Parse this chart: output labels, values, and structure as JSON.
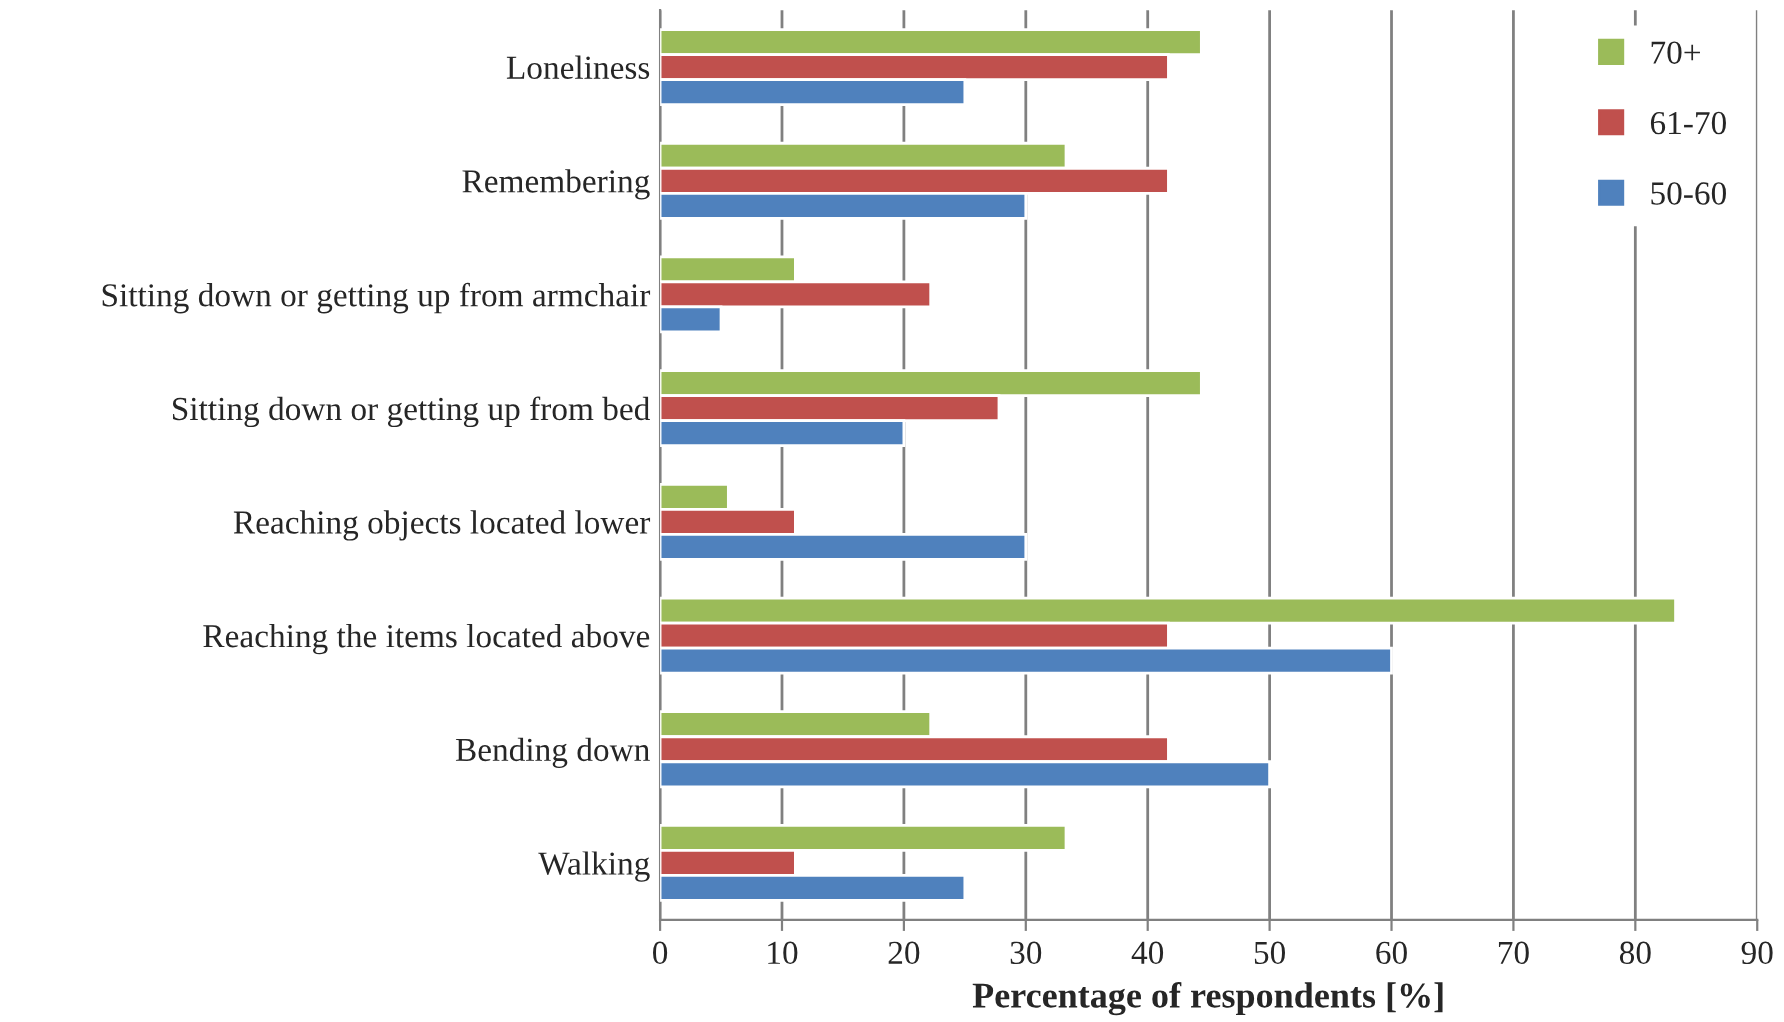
{
  "chart_data": {
    "type": "bar",
    "orientation": "horizontal",
    "xlabel": "Percentage of respondents [%]",
    "categories": [
      "Loneliness",
      "Remembering",
      "Sitting down or getting up from armchair",
      "Sitting down or getting up from bed",
      "Reaching objects located lower",
      "Reaching the items located above",
      "Bending down",
      "Walking"
    ],
    "series": [
      {
        "name": "70+",
        "color": "#9bbb59",
        "values": [
          44.4,
          33.3,
          11.1,
          44.4,
          5.6,
          83.3,
          22.2,
          33.3
        ]
      },
      {
        "name": "61-70",
        "color": "#c0504d",
        "values": [
          41.7,
          41.7,
          22.2,
          27.8,
          11.1,
          41.7,
          41.7,
          11.1
        ]
      },
      {
        "name": "50-60",
        "color": "#4f81bd",
        "values": [
          25,
          30,
          5,
          20,
          30,
          60,
          50,
          25
        ]
      }
    ],
    "xlim": [
      0,
      90
    ],
    "xticks": [
      0,
      10,
      20,
      30,
      40,
      50,
      60,
      70,
      80,
      90
    ],
    "grid": "x",
    "legend": "top right"
  }
}
